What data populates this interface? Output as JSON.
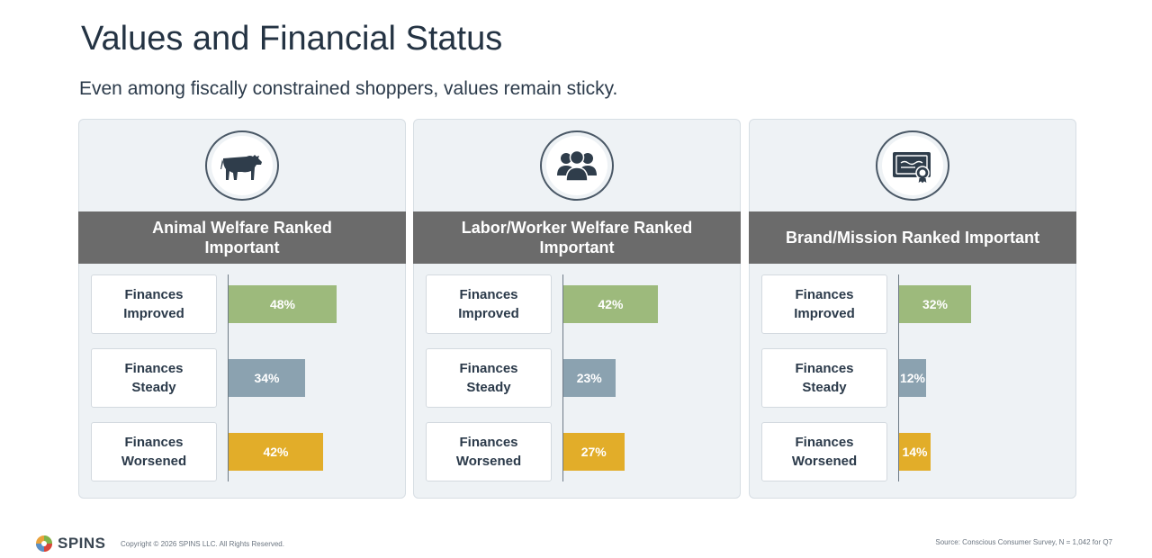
{
  "slide": {
    "title": "Values and Financial Status",
    "subtitle": "Even among fiscally constrained shoppers, values remain sticky."
  },
  "colors": {
    "improved": "#9dba7c",
    "steady": "#8ba2b0",
    "worsened": "#e2ad29",
    "header_bar": "#6b6b6b"
  },
  "chart_data": [
    {
      "type": "bar",
      "icon": "cow-icon",
      "title": "Animal Welfare Ranked Important",
      "categories": [
        "Finances Improved",
        "Finances Steady",
        "Finances Worsened"
      ],
      "values": [
        48,
        34,
        42
      ],
      "value_labels": [
        "48%",
        "34%",
        "42%"
      ]
    },
    {
      "type": "bar",
      "icon": "people-group-icon",
      "title": "Labor/Worker Welfare Ranked Important",
      "categories": [
        "Finances Improved",
        "Finances Steady",
        "Finances Worsened"
      ],
      "values": [
        42,
        23,
        27
      ],
      "value_labels": [
        "42%",
        "23%",
        "27%"
      ]
    },
    {
      "type": "bar",
      "icon": "certificate-icon",
      "title": "Brand/Mission Ranked Important",
      "categories": [
        "Finances Improved",
        "Finances Steady",
        "Finances Worsened"
      ],
      "values": [
        32,
        12,
        14
      ],
      "value_labels": [
        "32%",
        "12%",
        "14%"
      ]
    }
  ],
  "footer": {
    "logo_text": "SPINS",
    "copyright": "Copyright © 2026 SPINS LLC. All Rights Reserved.",
    "source": "Source:  Conscious Consumer Survey,  N = 1,042  for Q7"
  }
}
